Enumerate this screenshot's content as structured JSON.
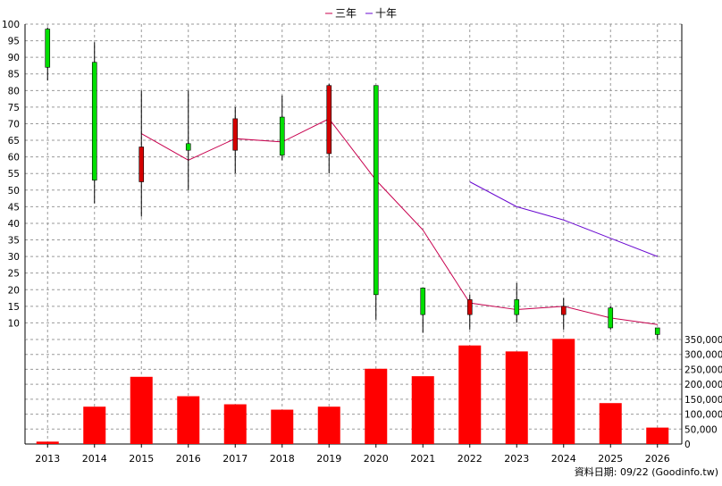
{
  "legend": {
    "items": [
      {
        "label": "三年",
        "color": "#c8004e"
      },
      {
        "label": "十年",
        "color": "#6a0ad0"
      }
    ]
  },
  "footer": {
    "source_text": "資料日期: 09/22  (Goodinfo.tw)"
  },
  "colors": {
    "up_candle": "#00e000",
    "down_candle": "#d40000",
    "volume_bar": "#ff0000",
    "grid": "#9a9a9a",
    "axis": "#000000"
  },
  "chart_data": [
    {
      "type": "candlestick",
      "title": "",
      "categories": [
        "2013",
        "2014",
        "2015",
        "2016",
        "2017",
        "2018",
        "2019",
        "2020",
        "2021",
        "2022",
        "2023",
        "2024",
        "2025",
        "2026"
      ],
      "ylim": [
        5,
        100
      ],
      "yticks": [
        10,
        15,
        20,
        25,
        30,
        35,
        40,
        45,
        50,
        55,
        60,
        65,
        70,
        75,
        80,
        85,
        90,
        95,
        100
      ],
      "grid": true,
      "legend_position": "top-center",
      "candles": [
        {
          "x": "2013",
          "open": 87,
          "high": 99,
          "low": 83,
          "close": 98.5,
          "direction": "up"
        },
        {
          "x": "2014",
          "open": 53,
          "high": 94.5,
          "low": 46,
          "close": 88.5,
          "direction": "up"
        },
        {
          "x": "2015",
          "open": 63,
          "high": 80,
          "low": 42,
          "close": 52.5,
          "direction": "down"
        },
        {
          "x": "2016",
          "open": 62,
          "high": 80,
          "low": 50,
          "close": 64,
          "direction": "up"
        },
        {
          "x": "2017",
          "open": 71.5,
          "high": 75,
          "low": 55,
          "close": 62,
          "direction": "down"
        },
        {
          "x": "2018",
          "open": 60.5,
          "high": 78.5,
          "low": 59,
          "close": 72,
          "direction": "up"
        },
        {
          "x": "2019",
          "open": 81.5,
          "high": 82,
          "low": 55,
          "close": 61,
          "direction": "down"
        },
        {
          "x": "2020",
          "open": 18.5,
          "high": 81.5,
          "low": 11,
          "close": 81.5,
          "direction": "up"
        },
        {
          "x": "2021",
          "open": 12.5,
          "high": 20.5,
          "low": 7,
          "close": 20.5,
          "direction": "up"
        },
        {
          "x": "2022",
          "open": 17,
          "high": 18.5,
          "low": 8,
          "close": 12.5,
          "direction": "down"
        },
        {
          "x": "2023",
          "open": 12.5,
          "high": 22,
          "low": 10,
          "close": 17,
          "direction": "up"
        },
        {
          "x": "2024",
          "open": 15,
          "high": 17.5,
          "low": 8,
          "close": 12.5,
          "direction": "down"
        },
        {
          "x": "2025",
          "open": 8.5,
          "high": 15,
          "low": 8,
          "close": 14.5,
          "direction": "up"
        },
        {
          "x": "2026",
          "open": 6.5,
          "high": 8.5,
          "low": 5,
          "close": 8.5,
          "direction": "up"
        }
      ],
      "series": [
        {
          "name": "三年",
          "x": [
            "2015",
            "2016",
            "2017",
            "2018",
            "2019",
            "2020",
            "2021",
            "2022",
            "2023",
            "2024",
            "2025",
            "2026"
          ],
          "values": [
            67,
            59,
            65.5,
            64.5,
            71.5,
            53,
            38,
            16,
            14,
            15,
            11.5,
            9.5
          ]
        },
        {
          "name": "十年",
          "x": [
            "2022",
            "2023",
            "2024",
            "2025",
            "2026"
          ],
          "values": [
            52.5,
            45,
            41,
            35.5,
            30
          ]
        }
      ]
    },
    {
      "type": "bar",
      "title": "",
      "categories": [
        "2013",
        "2014",
        "2015",
        "2016",
        "2017",
        "2018",
        "2019",
        "2020",
        "2021",
        "2022",
        "2023",
        "2024",
        "2025",
        "2026"
      ],
      "values": [
        8000,
        125000,
        225000,
        160000,
        133000,
        115000,
        125000,
        252000,
        227000,
        330000,
        310000,
        352000,
        137000,
        55000
      ],
      "ylim": [
        0,
        350000
      ],
      "yticks": [
        0,
        50000,
        100000,
        150000,
        200000,
        250000,
        300000,
        350000
      ],
      "ytick_labels": [
        "0",
        "50,000",
        "100,000",
        "150,000",
        "200,000",
        "250,000",
        "300,000",
        "350,000"
      ],
      "xtick_labels": [
        "2013",
        "2014",
        "2015",
        "2016",
        "2017",
        "2018",
        "2019",
        "2020",
        "2021",
        "2022",
        "2023",
        "2024",
        "2025",
        "2026"
      ],
      "grid": true
    }
  ]
}
